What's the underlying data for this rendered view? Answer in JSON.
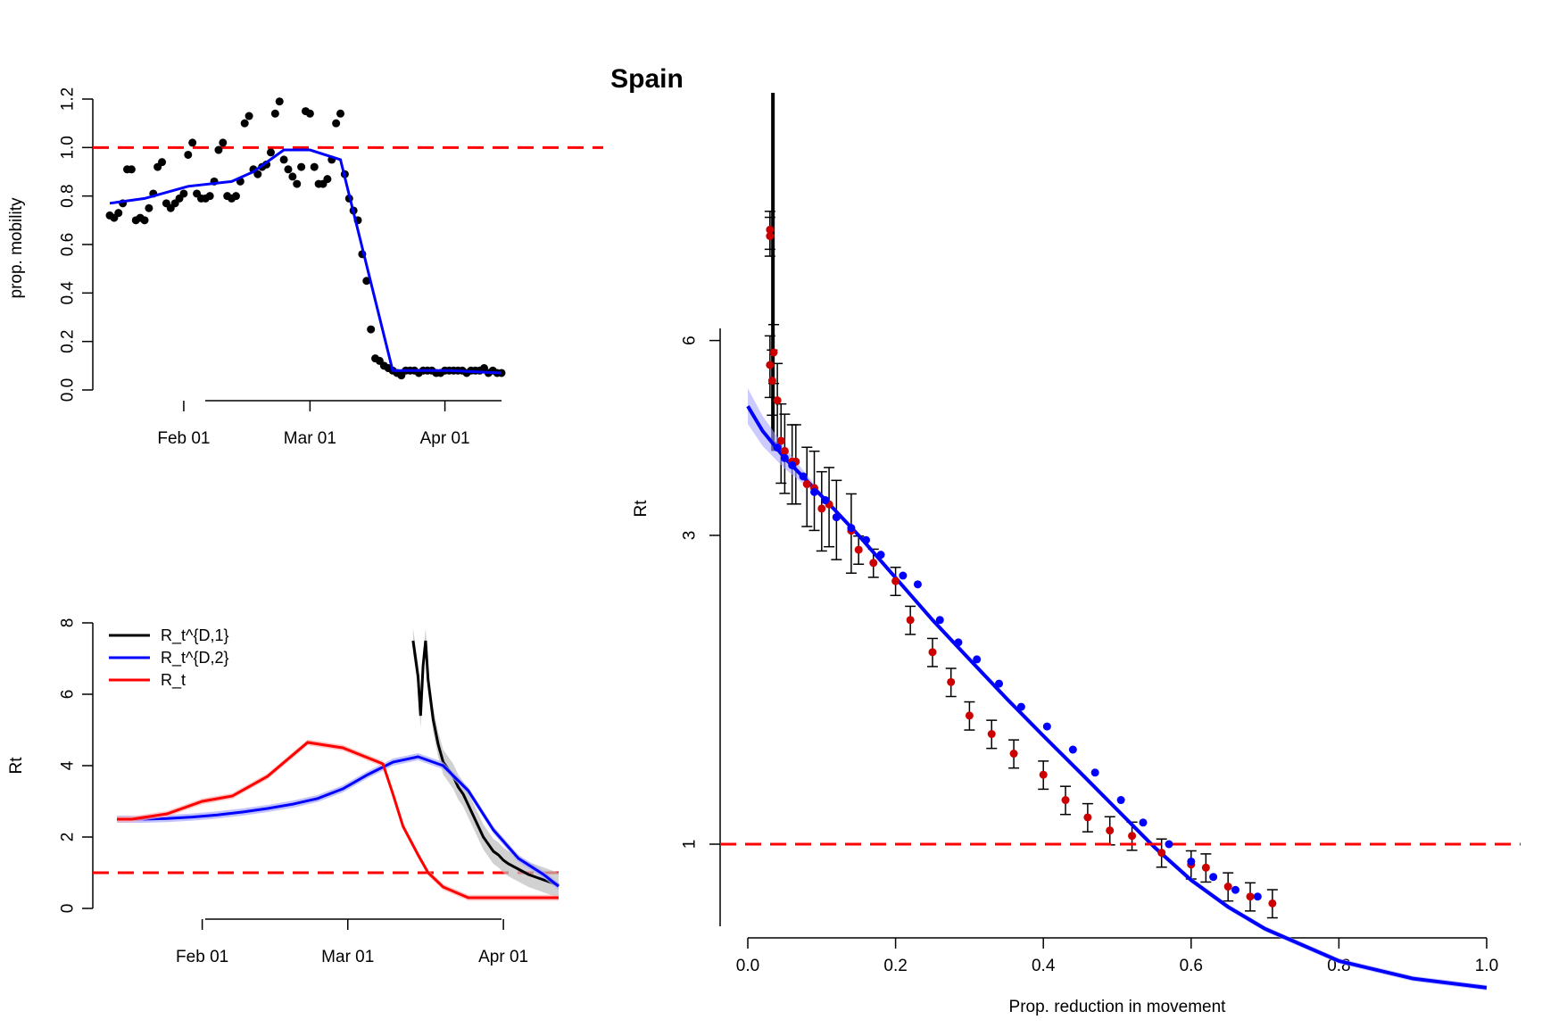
{
  "title": "Spain",
  "colors": {
    "black": "#000000",
    "blue": "#0000ff",
    "red": "#ff0000",
    "darkred": "#cc0000",
    "grey_band": "#bdbdbd",
    "blue_band": "#a8a8ff",
    "red_band": "#ffb0b0"
  },
  "chart_data": [
    {
      "id": "mobility",
      "type": "scatter",
      "xlabel": "",
      "ylabel": "prop. mobility",
      "x_ticks": [
        "Feb 01",
        "Mar 01",
        "Apr 01"
      ],
      "x_tick_days": [
        17,
        46,
        77
      ],
      "ylim": [
        0,
        1.2
      ],
      "y_ticks": [
        "0.0",
        "0.2",
        "0.4",
        "0.6",
        "0.8",
        "1.0",
        "1.2"
      ],
      "y_tick_values": [
        0,
        0.2,
        0.4,
        0.6,
        0.8,
        1.0,
        1.2
      ],
      "x_axis_start": "Jan 15",
      "reference_line": {
        "y": 1.0,
        "style": "dashed",
        "color": "red"
      },
      "points_day_offset_from_x_axis_start": [
        0,
        1,
        2,
        3,
        4,
        5,
        6,
        7,
        8,
        9,
        10,
        11,
        12,
        13,
        14,
        15,
        16,
        17,
        18,
        19,
        20,
        21,
        22,
        23,
        24,
        25,
        26,
        27,
        28,
        29,
        30,
        31,
        32,
        33,
        34,
        35,
        36,
        37,
        38,
        39,
        40,
        41,
        42,
        43,
        44,
        45,
        46,
        47,
        48,
        49,
        50,
        51,
        52,
        53,
        54,
        55,
        56,
        57,
        58,
        59,
        60,
        61,
        62,
        63,
        64,
        65,
        66,
        67,
        68,
        69,
        70,
        71,
        72,
        73,
        74,
        75,
        76,
        77,
        78,
        79,
        80,
        81,
        82,
        83,
        84,
        85,
        86,
        87,
        88,
        89,
        90
      ],
      "points_mobility": [
        0.72,
        0.71,
        0.73,
        0.77,
        0.91,
        0.91,
        0.7,
        0.71,
        0.7,
        0.75,
        0.81,
        0.92,
        0.94,
        0.77,
        0.75,
        0.77,
        0.79,
        0.81,
        0.97,
        1.02,
        0.81,
        0.79,
        0.79,
        0.8,
        0.86,
        0.99,
        1.02,
        0.8,
        0.79,
        0.8,
        0.86,
        1.1,
        1.13,
        0.91,
        0.89,
        0.92,
        0.93,
        0.98,
        1.14,
        1.19,
        0.95,
        0.91,
        0.88,
        0.85,
        0.92,
        1.15,
        1.14,
        0.92,
        0.85,
        0.85,
        0.87,
        0.95,
        1.1,
        1.14,
        0.89,
        0.79,
        0.74,
        0.7,
        0.56,
        0.45,
        0.25,
        0.13,
        0.12,
        0.1,
        0.09,
        0.08,
        0.07,
        0.06,
        0.08,
        0.08,
        0.08,
        0.07,
        0.08,
        0.08,
        0.08,
        0.07,
        0.07,
        0.08,
        0.08,
        0.08,
        0.08,
        0.08,
        0.07,
        0.08,
        0.08,
        0.08,
        0.09,
        0.07,
        0.08,
        0.07,
        0.07
      ],
      "fit_line": {
        "color": "blue",
        "x": [
          0,
          8,
          18,
          28,
          33,
          40,
          46,
          53,
          65,
          70,
          78,
          90
        ],
        "y": [
          0.77,
          0.79,
          0.84,
          0.86,
          0.9,
          0.99,
          0.99,
          0.95,
          0.08,
          0.08,
          0.08,
          0.07
        ]
      }
    },
    {
      "id": "rt_time",
      "type": "line",
      "ylabel": "Rt",
      "x_ticks": [
        "Feb 01",
        "Mar 01",
        "Apr 01"
      ],
      "x_tick_days": [
        17,
        46,
        77
      ],
      "ylim": [
        0,
        8
      ],
      "y_ticks": [
        "0",
        "2",
        "4",
        "6",
        "8"
      ],
      "y_tick_values": [
        0,
        2,
        4,
        6,
        8
      ],
      "x_axis_start": "Jan 15",
      "legend_position": "top-left",
      "reference_line": {
        "y": 1.0,
        "style": "dashed",
        "color": "red"
      },
      "series": [
        {
          "name": "R_t^{D,1}",
          "color": "black",
          "band": true,
          "x": [
            58,
            59,
            60,
            60.5,
            61,
            61.5,
            62,
            63,
            64,
            65,
            66,
            67,
            68,
            69,
            70,
            71,
            72,
            73,
            74,
            75,
            76,
            77,
            78,
            80,
            82,
            85,
            88
          ],
          "y": [
            8.3,
            7.5,
            6.5,
            5.4,
            6.8,
            7.5,
            6.4,
            5.3,
            4.6,
            4.1,
            3.9,
            3.7,
            3.4,
            3.2,
            2.9,
            2.6,
            2.3,
            2.0,
            1.8,
            1.6,
            1.5,
            1.35,
            1.25,
            1.1,
            0.95,
            0.8,
            0.65
          ]
        },
        {
          "name": "R_t^{D,2}",
          "color": "blue",
          "band": true,
          "x": [
            0,
            5,
            10,
            15,
            20,
            25,
            30,
            35,
            40,
            45,
            50,
            55,
            60,
            65,
            70,
            75,
            80,
            85,
            88
          ],
          "y": [
            2.5,
            2.5,
            2.52,
            2.56,
            2.62,
            2.7,
            2.8,
            2.92,
            3.08,
            3.35,
            3.75,
            4.1,
            4.25,
            4.0,
            3.3,
            2.2,
            1.4,
            0.95,
            0.62
          ]
        },
        {
          "name": "R_t",
          "color": "red",
          "band": true,
          "x": [
            0,
            3,
            10,
            17,
            23,
            30,
            38,
            45,
            53,
            55,
            57,
            60,
            62,
            65,
            70,
            75,
            80,
            85,
            88
          ],
          "y": [
            2.5,
            2.5,
            2.65,
            3.0,
            3.15,
            3.7,
            4.65,
            4.5,
            4.05,
            3.2,
            2.3,
            1.5,
            1.0,
            0.6,
            0.3,
            0.3,
            0.3,
            0.3,
            0.3
          ]
        }
      ]
    },
    {
      "id": "rt_reduction",
      "type": "scatter",
      "xlabel": "Prop. reduction in movement",
      "ylabel": "Rt",
      "x_ticks": [
        "0.0",
        "0.2",
        "0.4",
        "0.6",
        "0.8",
        "1.0"
      ],
      "x_tick_values": [
        0,
        0.2,
        0.4,
        0.6,
        0.8,
        1.0
      ],
      "y_scale": "log",
      "y_ticks": [
        "1",
        "3",
        "6"
      ],
      "y_tick_values": [
        1,
        3,
        6
      ],
      "reference_line": {
        "y": 1.0,
        "style": "dashed",
        "color": "red"
      },
      "fit_line": {
        "color": "blue",
        "band": true,
        "x": [
          0,
          0.02,
          0.05,
          0.1,
          0.15,
          0.2,
          0.25,
          0.3,
          0.35,
          0.4,
          0.45,
          0.5,
          0.55,
          0.6,
          0.65,
          0.7,
          0.8,
          0.9,
          1.0
        ],
        "y": [
          4.75,
          4.35,
          3.95,
          3.45,
          3.0,
          2.58,
          2.22,
          1.93,
          1.68,
          1.47,
          1.29,
          1.13,
          0.99,
          0.88,
          0.8,
          0.74,
          0.66,
          0.62,
          0.6
        ]
      },
      "red_points": {
        "x": [
          0.03,
          0.03,
          0.03,
          0.033,
          0.035,
          0.04,
          0.045,
          0.05,
          0.06,
          0.065,
          0.08,
          0.09,
          0.1,
          0.11,
          0.12,
          0.14,
          0.15,
          0.17,
          0.2,
          0.22,
          0.25,
          0.275,
          0.3,
          0.33,
          0.36,
          0.4,
          0.43,
          0.46,
          0.49,
          0.52,
          0.56,
          0.6,
          0.62,
          0.65,
          0.68,
          0.71
        ],
        "y": [
          8.9,
          8.7,
          5.5,
          5.2,
          5.75,
          4.85,
          4.2,
          4.05,
          3.9,
          3.9,
          3.6,
          3.55,
          3.3,
          3.35,
          3.2,
          3.05,
          2.85,
          2.72,
          2.55,
          2.22,
          1.98,
          1.78,
          1.58,
          1.48,
          1.38,
          1.28,
          1.17,
          1.1,
          1.05,
          1.03,
          0.97,
          0.93,
          0.92,
          0.86,
          0.83,
          0.81
        ]
      },
      "blue_points": {
        "x": [
          0.04,
          0.05,
          0.06,
          0.075,
          0.09,
          0.105,
          0.12,
          0.14,
          0.16,
          0.18,
          0.21,
          0.23,
          0.26,
          0.285,
          0.31,
          0.34,
          0.37,
          0.405,
          0.44,
          0.47,
          0.505,
          0.535,
          0.57,
          0.6,
          0.63,
          0.66,
          0.69
        ],
        "y": [
          4.1,
          3.95,
          3.85,
          3.7,
          3.5,
          3.4,
          3.2,
          3.08,
          2.95,
          2.8,
          2.6,
          2.52,
          2.22,
          2.05,
          1.93,
          1.77,
          1.63,
          1.52,
          1.4,
          1.29,
          1.17,
          1.08,
          1.0,
          0.94,
          0.89,
          0.85,
          0.83
        ]
      }
    }
  ]
}
